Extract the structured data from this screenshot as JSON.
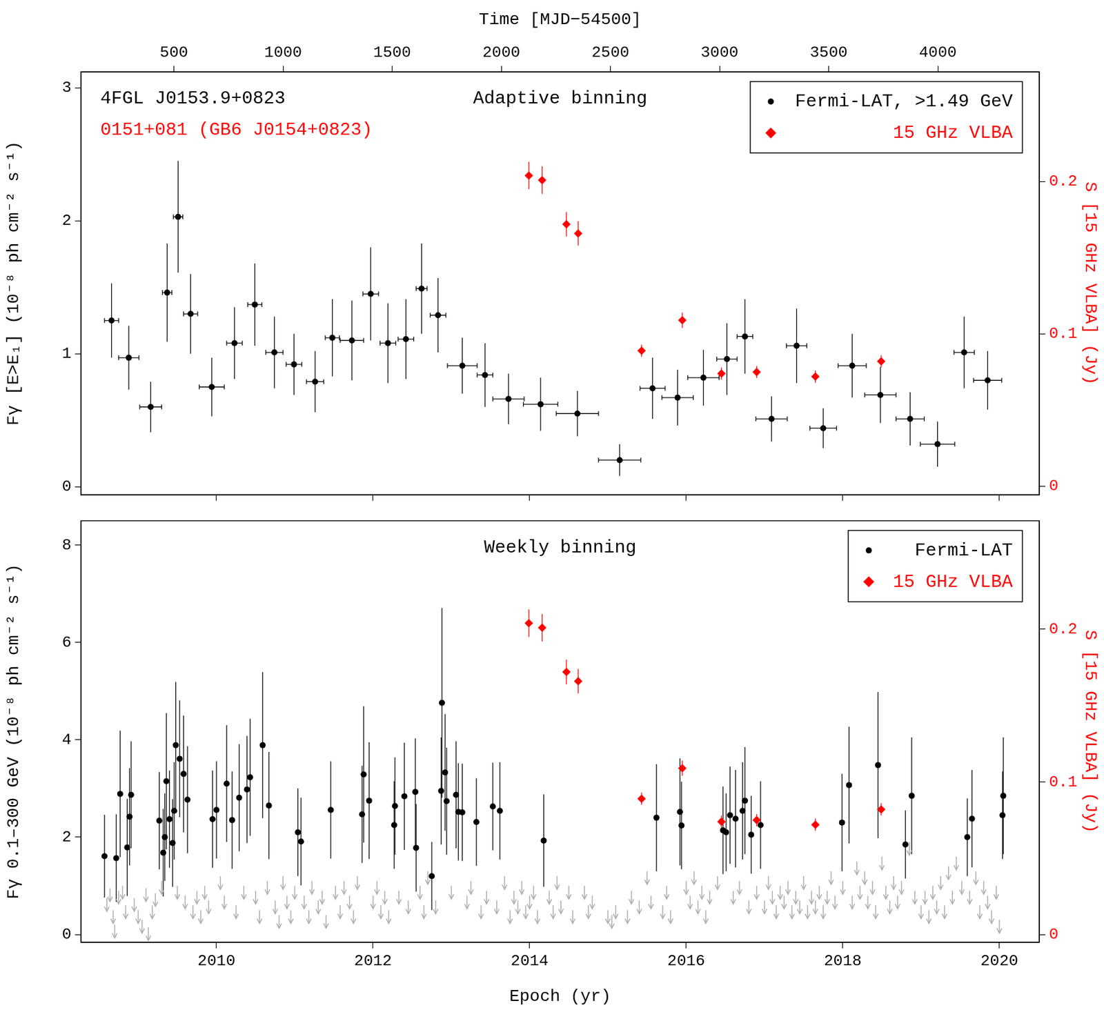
{
  "chart_data": [
    {
      "type": "scatter",
      "title": "Adaptive binning",
      "annotations": [
        {
          "text": "4FGL J0153.9+0823",
          "color": "#000000"
        },
        {
          "text": "0151+081 (GB6 J0154+0823)",
          "color": "#ff0000"
        }
      ],
      "x2_label": "Time [MJD−54500]",
      "y_label": "Fγ [E>E₁] (10⁻⁸ ph cm⁻² s⁻¹)",
      "y2_label": "S [15 GHz VLBA] (Jy)",
      "xlim": [
        2008.27,
        2020.51
      ],
      "xticks": [
        2010,
        2012,
        2014,
        2016,
        2018,
        2020
      ],
      "x2lim": [
        74,
        4465
      ],
      "x2ticks": [
        500,
        1000,
        1500,
        2000,
        2500,
        3000,
        3500,
        4000
      ],
      "ylim": [
        -0.06,
        3.12
      ],
      "yticks": [
        0,
        1,
        2,
        3
      ],
      "y2lim": [
        -0.0055,
        0.272
      ],
      "y2ticks": [
        0,
        0.1,
        0.2
      ],
      "grid": false,
      "legend": "upper right",
      "tick_labels": "y",
      "series": [
        {
          "name": "Fermi-LAT, >1.49 GeV",
          "color": "#000000",
          "marker": "circle",
          "x": [
            2008.66,
            2008.88,
            2009.16,
            2009.37,
            2009.51,
            2009.67,
            2009.94,
            2010.23,
            2010.49,
            2010.74,
            2010.99,
            2011.26,
            2011.48,
            2011.73,
            2011.97,
            2012.19,
            2012.42,
            2012.62,
            2012.83,
            2013.14,
            2013.43,
            2013.73,
            2014.14,
            2014.61,
            2015.15,
            2015.57,
            2015.89,
            2016.22,
            2016.52,
            2016.75,
            2017.09,
            2017.41,
            2017.75,
            2018.12,
            2018.48,
            2018.86,
            2019.21,
            2019.55,
            2019.85
          ],
          "values": [
            1.25,
            0.97,
            0.6,
            1.46,
            2.03,
            1.3,
            0.75,
            1.08,
            1.37,
            1.01,
            0.92,
            0.79,
            1.12,
            1.1,
            1.45,
            1.08,
            1.11,
            1.49,
            1.29,
            0.91,
            0.84,
            0.66,
            0.62,
            0.55,
            0.2,
            0.74,
            0.67,
            0.82,
            0.96,
            1.13,
            0.51,
            1.06,
            0.44,
            0.91,
            0.69,
            0.51,
            0.32,
            1.01,
            0.8
          ],
          "errors": [
            0.28,
            0.24,
            0.19,
            0.37,
            0.42,
            0.3,
            0.22,
            0.27,
            0.31,
            0.27,
            0.23,
            0.23,
            0.29,
            0.3,
            0.35,
            0.3,
            0.3,
            0.34,
            0.28,
            0.21,
            0.24,
            0.19,
            0.2,
            0.17,
            0.12,
            0.23,
            0.21,
            0.21,
            0.27,
            0.28,
            0.17,
            0.28,
            0.15,
            0.24,
            0.21,
            0.2,
            0.17,
            0.27,
            0.22
          ],
          "x_errors": [
            0.09,
            0.13,
            0.14,
            0.06,
            0.06,
            0.09,
            0.16,
            0.1,
            0.09,
            0.11,
            0.1,
            0.11,
            0.09,
            0.15,
            0.1,
            0.1,
            0.1,
            0.07,
            0.1,
            0.19,
            0.1,
            0.2,
            0.22,
            0.27,
            0.27,
            0.16,
            0.2,
            0.2,
            0.13,
            0.1,
            0.2,
            0.13,
            0.17,
            0.18,
            0.2,
            0.18,
            0.22,
            0.13,
            0.18
          ]
        },
        {
          "name": "15 GHz VLBA",
          "color": "#ff0000",
          "marker": "diamond",
          "axis": "y2",
          "x": [
            2013.99,
            2014.16,
            2014.47,
            2014.62,
            2015.43,
            2015.95,
            2016.45,
            2016.9,
            2017.65,
            2018.49
          ],
          "values": [
            0.204,
            0.201,
            0.172,
            0.166,
            0.089,
            0.109,
            0.074,
            0.075,
            0.072,
            0.082
          ],
          "errors": [
            0.009,
            0.009,
            0.008,
            0.008,
            0.004,
            0.005,
            0.004,
            0.004,
            0.004,
            0.004
          ]
        }
      ]
    },
    {
      "type": "scatter",
      "title": "Weekly binning",
      "x_label": "Epoch (yr)",
      "y_label": "Fγ 0.1–300 GeV (10⁻⁸ ph cm⁻² s⁻¹)",
      "y2_label": "S [15 GHz VLBA] (Jy)",
      "xlim": [
        2008.27,
        2020.51
      ],
      "xticks": [
        2010,
        2012,
        2014,
        2016,
        2018,
        2020
      ],
      "ylim": [
        -0.16,
        8.5
      ],
      "yticks": [
        0,
        2,
        4,
        6,
        8
      ],
      "y2lim": [
        -0.005,
        0.271
      ],
      "y2ticks": [
        0,
        0.1,
        0.2
      ],
      "grid": false,
      "legend": "upper right",
      "series": [
        {
          "name": "Fermi-LAT",
          "color": "#000000",
          "marker": "circle",
          "x": [
            2008.57,
            2008.72,
            2008.77,
            2008.86,
            2008.89,
            2008.91,
            2009.27,
            2009.32,
            2009.34,
            2009.36,
            2009.4,
            2009.44,
            2009.46,
            2009.48,
            2009.53,
            2009.58,
            2009.63,
            2009.95,
            2010.0,
            2010.13,
            2010.2,
            2010.29,
            2010.39,
            2010.43,
            2010.59,
            2010.67,
            2011.04,
            2011.08,
            2011.46,
            2011.86,
            2011.88,
            2011.95,
            2012.27,
            2012.28,
            2012.4,
            2012.54,
            2012.55,
            2012.75,
            2012.87,
            2012.88,
            2012.92,
            2012.94,
            2013.06,
            2013.09,
            2013.14,
            2013.32,
            2013.53,
            2013.62,
            2014.18,
            2015.62,
            2015.92,
            2015.94,
            2016.47,
            2016.51,
            2016.56,
            2016.63,
            2016.72,
            2016.75,
            2016.83,
            2016.95,
            2017.99,
            2018.08,
            2018.45,
            2018.8,
            2018.88,
            2019.59,
            2019.65,
            2020.04,
            2020.05
          ],
          "values": [
            1.61,
            1.57,
            2.89,
            1.79,
            2.42,
            2.87,
            2.34,
            1.68,
            2.0,
            3.15,
            2.37,
            1.88,
            2.54,
            3.89,
            3.61,
            3.3,
            2.77,
            2.37,
            2.56,
            3.1,
            2.35,
            2.81,
            2.98,
            3.23,
            3.89,
            2.65,
            2.1,
            1.91,
            2.56,
            2.47,
            3.29,
            2.75,
            2.25,
            2.64,
            2.84,
            2.93,
            1.78,
            1.2,
            2.95,
            4.76,
            3.33,
            2.74,
            2.87,
            2.52,
            2.51,
            2.31,
            2.63,
            2.54,
            1.93,
            2.4,
            2.52,
            2.24,
            2.14,
            2.1,
            2.45,
            2.38,
            2.54,
            2.75,
            2.05,
            2.25,
            2.3,
            3.07,
            3.48,
            1.85,
            2.85,
            2.0,
            2.38,
            2.45,
            2.85
          ],
          "errors": [
            0.85,
            0.9,
            1.3,
            1.0,
            1.0,
            1.1,
            1.0,
            0.9,
            0.9,
            1.4,
            1.0,
            0.9,
            1.0,
            1.3,
            1.2,
            1.2,
            1.1,
            1.0,
            1.0,
            1.2,
            1.0,
            1.1,
            1.1,
            1.2,
            1.5,
            1.1,
            0.9,
            0.9,
            1.0,
            1.0,
            1.4,
            1.2,
            0.9,
            1.0,
            1.1,
            1.1,
            0.9,
            0.7,
            1.1,
            1.95,
            1.2,
            1.1,
            1.1,
            1.0,
            1.0,
            0.9,
            0.9,
            1.0,
            0.95,
            1.1,
            1.1,
            0.9,
            0.9,
            0.8,
            1.0,
            1.0,
            1.0,
            1.1,
            0.8,
            0.9,
            1.0,
            1.2,
            1.5,
            0.7,
            1.2,
            0.8,
            1.0,
            0.9,
            1.2
          ]
        },
        {
          "color": "#aaaaaa",
          "marker": "arrow",
          "x": [
            2008.6,
            2008.64,
            2008.68,
            2008.7,
            2008.75,
            2008.8,
            2008.84,
            2008.95,
            2009.0,
            2009.05,
            2009.1,
            2009.13,
            2009.18,
            2009.22,
            2009.3,
            2009.5,
            2009.6,
            2009.7,
            2009.75,
            2009.8,
            2009.85,
            2009.9,
            2010.05,
            2010.1,
            2010.25,
            2010.35,
            2010.5,
            2010.55,
            2010.65,
            2010.75,
            2010.8,
            2010.85,
            2010.9,
            2010.95,
            2011.0,
            2011.12,
            2011.18,
            2011.22,
            2011.3,
            2011.35,
            2011.4,
            2011.52,
            2011.58,
            2011.63,
            2011.7,
            2011.75,
            2011.8,
            2012.0,
            2012.05,
            2012.1,
            2012.15,
            2012.2,
            2012.33,
            2012.45,
            2012.6,
            2012.65,
            2012.7,
            2012.8,
            2013.0,
            2013.2,
            2013.25,
            2013.38,
            2013.45,
            2013.58,
            2013.68,
            2013.75,
            2013.8,
            2013.85,
            2013.9,
            2013.95,
            2014.0,
            2014.05,
            2014.1,
            2014.25,
            2014.3,
            2014.35,
            2014.4,
            2014.5,
            2014.55,
            2014.7,
            2014.75,
            2014.8,
            2015.0,
            2015.05,
            2015.1,
            2015.25,
            2015.3,
            2015.4,
            2015.5,
            2015.55,
            2015.7,
            2015.75,
            2015.8,
            2016.0,
            2016.05,
            2016.1,
            2016.15,
            2016.2,
            2016.25,
            2016.3,
            2016.4,
            2016.6,
            2016.68,
            2016.8,
            2016.9,
            2017.0,
            2017.05,
            2017.1,
            2017.15,
            2017.2,
            2017.25,
            2017.3,
            2017.35,
            2017.4,
            2017.45,
            2017.5,
            2017.55,
            2017.6,
            2017.65,
            2017.7,
            2017.75,
            2017.8,
            2017.85,
            2017.9,
            2018.0,
            2018.12,
            2018.18,
            2018.22,
            2018.28,
            2018.32,
            2018.38,
            2018.42,
            2018.5,
            2018.55,
            2018.6,
            2018.65,
            2018.7,
            2018.75,
            2018.85,
            2018.92,
            2019.0,
            2019.05,
            2019.1,
            2019.15,
            2019.2,
            2019.25,
            2019.3,
            2019.35,
            2019.4,
            2019.45,
            2019.52,
            2019.62,
            2019.7,
            2019.75,
            2019.8,
            2019.85,
            2019.9,
            2019.96,
            2020.0
          ],
          "values": [
            0.75,
            0.95,
            0.5,
            0.2,
            0.9,
            1.0,
            0.6,
            0.75,
            0.5,
            0.3,
            0.95,
            0.15,
            0.6,
            0.85,
            1.1,
            1.0,
            0.8,
            0.6,
            0.9,
            0.5,
            1.0,
            0.7,
            1.2,
            0.8,
            0.6,
            1.0,
            0.9,
            0.5,
            1.1,
            0.7,
            0.4,
            1.2,
            0.8,
            0.5,
            1.0,
            0.8,
            0.5,
            1.1,
            0.7,
            0.9,
            0.4,
            1.0,
            0.6,
            1.1,
            0.8,
            0.5,
            1.2,
            0.8,
            1.1,
            0.6,
            0.9,
            0.5,
            0.9,
            0.7,
            1.0,
            0.6,
            1.3,
            0.7,
            1.0,
            0.8,
            1.1,
            0.6,
            0.9,
            0.7,
            1.2,
            0.5,
            0.9,
            0.7,
            1.1,
            0.6,
            0.8,
            1.0,
            0.5,
            0.9,
            0.6,
            1.2,
            0.7,
            1.0,
            0.5,
            1.0,
            0.6,
            0.8,
            0.5,
            0.4,
            0.6,
            0.5,
            0.9,
            0.7,
            1.3,
            0.8,
            0.6,
            1.0,
            0.5,
            1.1,
            0.8,
            1.3,
            0.7,
            1.0,
            0.5,
            0.9,
            1.2,
            0.9,
            1.1,
            0.7,
            1.0,
            0.7,
            1.2,
            0.9,
            0.6,
            1.0,
            0.8,
            1.1,
            0.6,
            0.9,
            0.7,
            1.2,
            0.6,
            0.9,
            0.7,
            1.0,
            0.6,
            0.9,
            1.3,
            0.8,
            1.1,
            0.8,
            1.5,
            1.0,
            1.3,
            0.8,
            1.1,
            0.6,
            1.6,
            1.0,
            0.7,
            1.2,
            0.8,
            1.1,
            1.9,
            0.9,
            0.6,
            0.9,
            0.5,
            1.0,
            0.7,
            1.2,
            0.6,
            1.4,
            0.9,
            1.6,
            1.1,
            0.9,
            1.3,
            0.6,
            1.1,
            0.8,
            0.5,
            1.0,
            0.3
          ]
        },
        {
          "name": "15 GHz VLBA",
          "color": "#ff0000",
          "marker": "diamond",
          "axis": "y2",
          "x": [
            2013.99,
            2014.16,
            2014.47,
            2014.62,
            2015.43,
            2015.95,
            2016.45,
            2016.9,
            2017.65,
            2018.49
          ],
          "values": [
            0.204,
            0.201,
            0.172,
            0.166,
            0.089,
            0.109,
            0.074,
            0.075,
            0.072,
            0.082
          ],
          "errors": [
            0.009,
            0.009,
            0.008,
            0.008,
            0.004,
            0.005,
            0.004,
            0.004,
            0.004,
            0.004
          ]
        }
      ]
    }
  ]
}
